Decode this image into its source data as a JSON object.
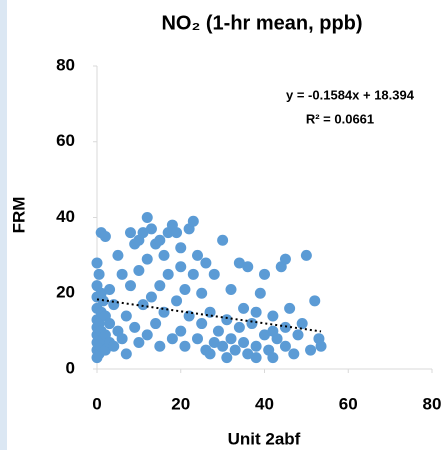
{
  "chart_data": {
    "type": "scatter",
    "title": "NO₂ (1-hr mean, ppb)",
    "x_label": "Unit 2abf",
    "y_label": "FRM",
    "color": "#5b9bd5",
    "x": [
      0,
      0,
      0,
      0,
      0,
      0,
      0,
      0,
      0,
      0,
      0.5,
      0.5,
      0.5,
      1,
      1,
      1,
      1,
      1,
      1.5,
      1.5,
      2,
      2,
      2,
      2,
      3,
      3,
      3,
      4,
      4,
      5,
      5,
      6,
      6,
      7,
      7,
      8,
      8,
      9,
      9,
      10,
      10,
      10,
      11,
      11,
      12,
      12,
      12,
      13,
      13,
      14,
      14,
      15,
      15,
      15,
      16,
      16,
      17,
      17,
      18,
      18,
      19,
      19,
      20,
      20,
      20,
      21,
      21,
      22,
      22,
      23,
      23,
      24,
      24,
      25,
      25,
      26,
      26,
      27,
      27,
      28,
      28,
      29,
      30,
      30,
      31,
      31,
      32,
      32,
      33,
      34,
      34,
      35,
      35,
      36,
      36,
      37,
      38,
      38,
      39,
      40,
      40,
      41,
      42,
      42,
      43,
      44,
      45,
      45,
      46,
      47,
      48,
      49,
      50,
      51,
      52,
      53,
      53.5,
      45,
      42,
      38
    ],
    "values": [
      3,
      5,
      7,
      9,
      11,
      13,
      16,
      19,
      22,
      28,
      4,
      12,
      25,
      6,
      10,
      15,
      20,
      36,
      8,
      18,
      5,
      9,
      14,
      35,
      7,
      21,
      12,
      6,
      17,
      30,
      10,
      8,
      25,
      4,
      14,
      36,
      22,
      11,
      33,
      34,
      7,
      26,
      17,
      36,
      40,
      29,
      9,
      37,
      19,
      33,
      12,
      34,
      22,
      6,
      30,
      15,
      36,
      25,
      8,
      38,
      36,
      18,
      32,
      10,
      27,
      21,
      6,
      37,
      14,
      39,
      25,
      30,
      8,
      20,
      12,
      28,
      5,
      15,
      4,
      7,
      25,
      10,
      34,
      6,
      13,
      3,
      21,
      8,
      5,
      28,
      11,
      16,
      7,
      27,
      4,
      12,
      15,
      6,
      20,
      9,
      25,
      5,
      14,
      3,
      8,
      27,
      11,
      6,
      16,
      4,
      9,
      12,
      30,
      5,
      18,
      8,
      6,
      29,
      10,
      3
    ],
    "trendline": {
      "equation": "y = -0.1584x + 18.394",
      "r2_label": "R² = 0.0661",
      "slope": -0.1584,
      "intercept": 18.394,
      "x": [
        0,
        53.5
      ]
    },
    "xlim": [
      0,
      80
    ],
    "xticks": [
      0,
      20,
      40,
      60,
      80
    ],
    "ylim": [
      0,
      80
    ],
    "yticks": [
      0,
      20,
      40,
      60,
      80
    ]
  }
}
